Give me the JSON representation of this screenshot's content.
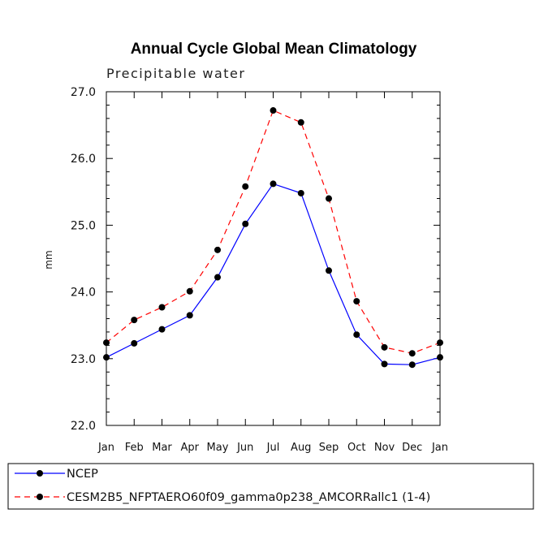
{
  "chart_data": {
    "type": "line",
    "title": "Annual Cycle Global Mean Climatology",
    "subtitle": "Precipitable water",
    "xlabel": "",
    "ylabel": "mm",
    "categories": [
      "Jan",
      "Feb",
      "Mar",
      "Apr",
      "May",
      "Jun",
      "Jul",
      "Aug",
      "Sep",
      "Oct",
      "Nov",
      "Dec",
      "Jan"
    ],
    "ylim": [
      22.0,
      27.0
    ],
    "yticks": [
      "22.0",
      "23.0",
      "24.0",
      "25.0",
      "26.0",
      "27.0"
    ],
    "series": [
      {
        "name": "NCEP",
        "color": "#0000ff",
        "dash": "solid",
        "values": [
          23.02,
          23.23,
          23.44,
          23.65,
          24.22,
          25.02,
          25.62,
          25.48,
          24.32,
          23.36,
          22.92,
          22.91,
          23.02
        ]
      },
      {
        "name": "CESM2B5_NFPTAERO60f09_gamma0p238_AMCORRallc1 (1-4)",
        "color": "#ff0000",
        "dash": "dashed",
        "values": [
          23.24,
          23.58,
          23.77,
          24.01,
          24.63,
          25.58,
          26.72,
          26.54,
          25.4,
          23.86,
          23.17,
          23.08,
          23.24
        ]
      }
    ]
  }
}
